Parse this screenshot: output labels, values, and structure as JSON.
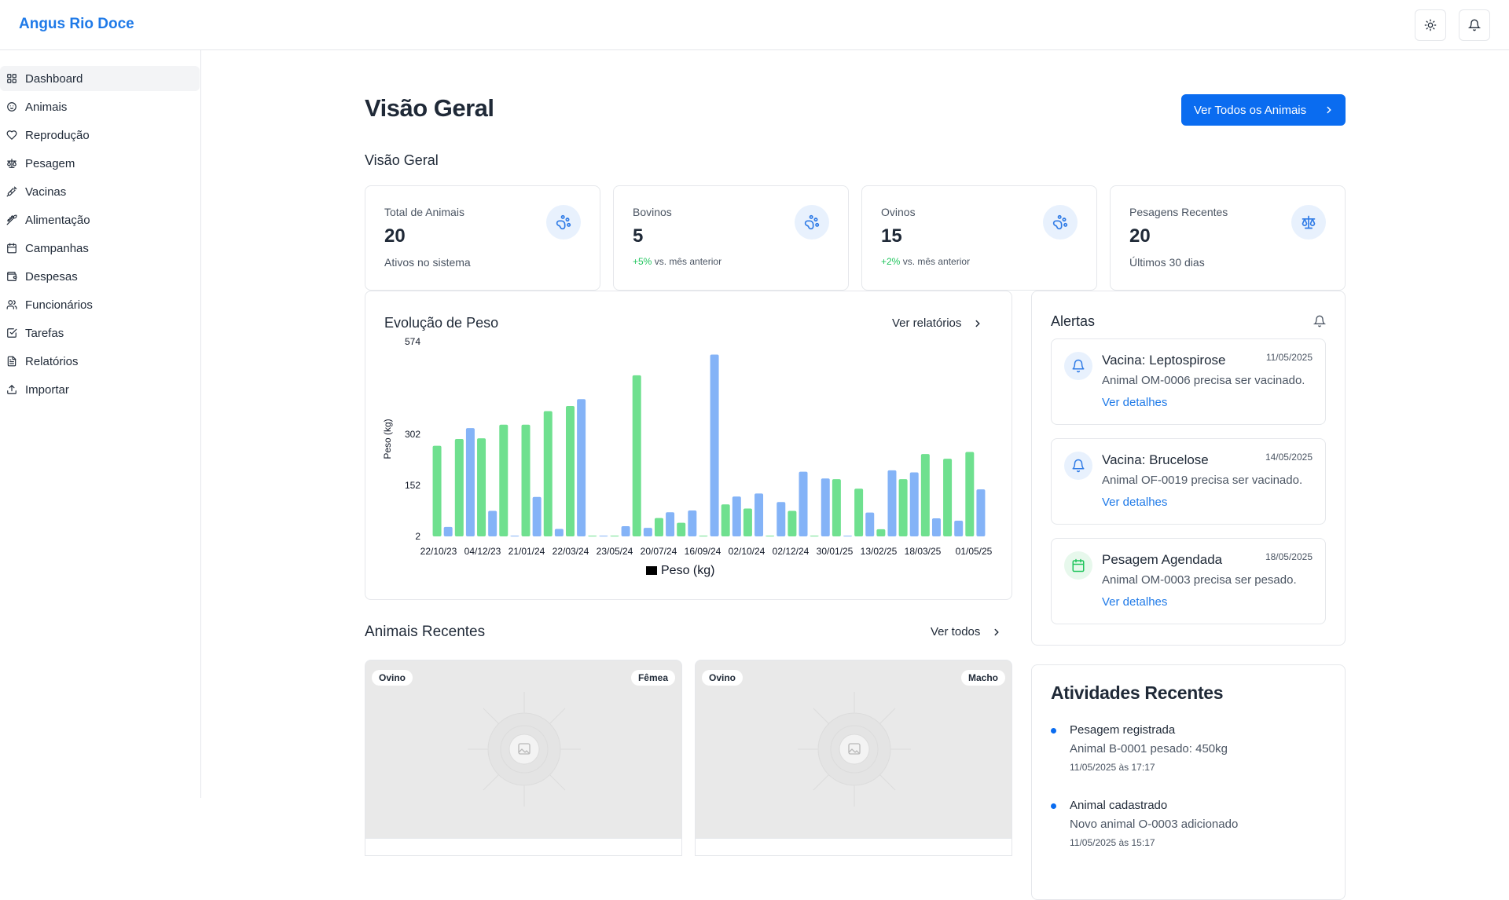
{
  "brand": "Angus Rio Doce",
  "sidebar": {
    "items": [
      {
        "label": "Dashboard",
        "icon": "grid-icon",
        "active": true
      },
      {
        "label": "Animais",
        "icon": "animal-icon"
      },
      {
        "label": "Reprodução",
        "icon": "heart-icon"
      },
      {
        "label": "Pesagem",
        "icon": "scale-icon"
      },
      {
        "label": "Vacinas",
        "icon": "syringe-icon"
      },
      {
        "label": "Alimentação",
        "icon": "feed-icon"
      },
      {
        "label": "Campanhas",
        "icon": "calendar-icon"
      },
      {
        "label": "Despesas",
        "icon": "wallet-icon"
      },
      {
        "label": "Funcionários",
        "icon": "users-icon"
      },
      {
        "label": "Tarefas",
        "icon": "checkbox-icon"
      },
      {
        "label": "Relatórios",
        "icon": "file-icon"
      },
      {
        "label": "Importar",
        "icon": "upload-icon"
      }
    ]
  },
  "header": {
    "title": "Visão Geral",
    "view_all_button": "Ver Todos os Animais",
    "section_title": "Visão Geral"
  },
  "stats": [
    {
      "label": "Total de Animais",
      "value": "20",
      "sub": "Ativos no sistema",
      "icon": "paw-icon"
    },
    {
      "label": "Bovinos",
      "value": "5",
      "trend": "+5%",
      "trend_text": "vs. mês anterior",
      "icon": "paw-icon"
    },
    {
      "label": "Ovinos",
      "value": "15",
      "trend": "+2%",
      "trend_text": "vs. mês anterior",
      "icon": "paw-icon"
    },
    {
      "label": "Pesagens Recentes",
      "value": "20",
      "sub": "Últimos 30 dias",
      "icon": "scale-icon"
    }
  ],
  "weight_chart": {
    "title": "Evolução de Peso",
    "link": "Ver relatórios"
  },
  "chart_data": {
    "type": "bar",
    "ylabel": "Peso (kg)",
    "legend": "Peso (kg)",
    "y_ticks": [
      2,
      152,
      302,
      574
    ],
    "x_tick_labels": [
      "22/10/23",
      "04/12/23",
      "21/01/24",
      "22/03/24",
      "23/05/24",
      "20/07/24",
      "16/09/24",
      "02/10/24",
      "02/12/24",
      "30/01/25",
      "13/02/25",
      "18/03/25",
      "01/05/25"
    ],
    "colors": {
      "green": "#6fe08f",
      "blue": "#84b3f7"
    },
    "bars": [
      {
        "value": 268,
        "color": "green"
      },
      {
        "value": 30,
        "color": "blue"
      },
      {
        "value": 288,
        "color": "green"
      },
      {
        "value": 320,
        "color": "blue"
      },
      {
        "value": 290,
        "color": "green"
      },
      {
        "value": 77,
        "color": "blue"
      },
      {
        "value": 330,
        "color": "green"
      },
      {
        "value": 4,
        "color": "blue"
      },
      {
        "value": 330,
        "color": "green"
      },
      {
        "value": 118,
        "color": "blue"
      },
      {
        "value": 370,
        "color": "green"
      },
      {
        "value": 24,
        "color": "blue"
      },
      {
        "value": 385,
        "color": "green"
      },
      {
        "value": 405,
        "color": "blue"
      },
      {
        "value": 4,
        "color": "green"
      },
      {
        "value": 4,
        "color": "blue"
      },
      {
        "value": 4,
        "color": "green"
      },
      {
        "value": 32,
        "color": "blue"
      },
      {
        "value": 475,
        "color": "green"
      },
      {
        "value": 27,
        "color": "blue"
      },
      {
        "value": 56,
        "color": "green"
      },
      {
        "value": 73,
        "color": "blue"
      },
      {
        "value": 42,
        "color": "green"
      },
      {
        "value": 78,
        "color": "blue"
      },
      {
        "value": 4,
        "color": "green"
      },
      {
        "value": 536,
        "color": "blue"
      },
      {
        "value": 96,
        "color": "green"
      },
      {
        "value": 119,
        "color": "blue"
      },
      {
        "value": 84,
        "color": "green"
      },
      {
        "value": 128,
        "color": "blue"
      },
      {
        "value": 4,
        "color": "green"
      },
      {
        "value": 103,
        "color": "blue"
      },
      {
        "value": 77,
        "color": "green"
      },
      {
        "value": 192,
        "color": "blue"
      },
      {
        "value": 4,
        "color": "green"
      },
      {
        "value": 172,
        "color": "blue"
      },
      {
        "value": 170,
        "color": "green"
      },
      {
        "value": 4,
        "color": "blue"
      },
      {
        "value": 142,
        "color": "green"
      },
      {
        "value": 72,
        "color": "blue"
      },
      {
        "value": 23,
        "color": "green"
      },
      {
        "value": 196,
        "color": "blue"
      },
      {
        "value": 170,
        "color": "green"
      },
      {
        "value": 190,
        "color": "blue"
      },
      {
        "value": 244,
        "color": "green"
      },
      {
        "value": 55,
        "color": "blue"
      },
      {
        "value": 230,
        "color": "green"
      },
      {
        "value": 48,
        "color": "blue"
      },
      {
        "value": 250,
        "color": "green"
      },
      {
        "value": 140,
        "color": "blue"
      }
    ]
  },
  "alerts": {
    "title": "Alertas",
    "items": [
      {
        "title": "Vacina: Leptospirose",
        "date": "11/05/2025",
        "desc": "Animal OM-0006 precisa ser vacinado.",
        "link": "Ver detalhes",
        "icon": "bell-icon",
        "tint": "#e8f1fd",
        "icon_color": "#2f7be6"
      },
      {
        "title": "Vacina: Brucelose",
        "date": "14/05/2025",
        "desc": "Animal OF-0019 precisa ser vacinado.",
        "link": "Ver detalhes",
        "icon": "bell-icon",
        "tint": "#e8f1fd",
        "icon_color": "#2f7be6"
      },
      {
        "title": "Pesagem Agendada",
        "date": "18/05/2025",
        "desc": "Animal OM-0003 precisa ser pesado.",
        "link": "Ver detalhes",
        "icon": "calendar-icon",
        "tint": "#e7f8ec",
        "icon_color": "#22c55e"
      }
    ]
  },
  "activities": {
    "title": "Atividades Recentes",
    "items": [
      {
        "name": "Pesagem registrada",
        "desc": "Animal B-0001 pesado: 450kg",
        "time": "11/05/2025 às 17:17"
      },
      {
        "name": "Animal cadastrado",
        "desc": "Novo animal O-0003 adicionado",
        "time": "11/05/2025 às 15:17"
      }
    ]
  },
  "recent_animals": {
    "title": "Animais Recentes",
    "link": "Ver todos",
    "cards": [
      {
        "type": "Ovino",
        "sex": "Fêmea"
      },
      {
        "type": "Ovino",
        "sex": "Macho"
      }
    ]
  }
}
